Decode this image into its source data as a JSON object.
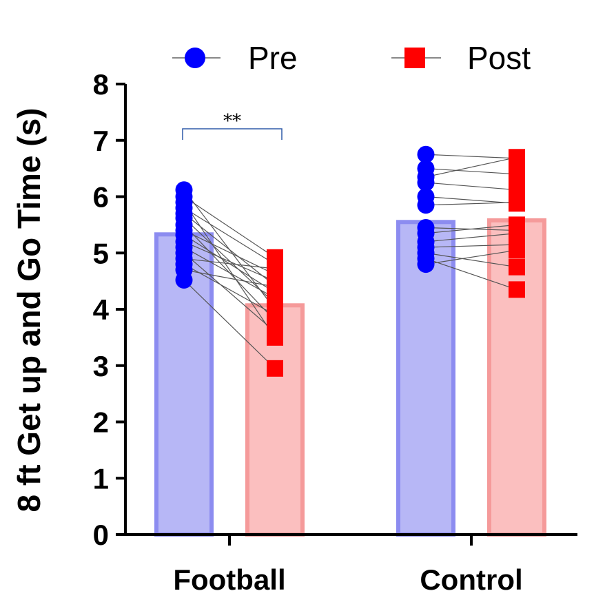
{
  "chart_data": {
    "type": "bar",
    "title": "",
    "ylabel": "8 ft Get up and Go Time (s)",
    "xlabel": "",
    "ylim": [
      0,
      8
    ],
    "yticks": [
      "0",
      "1",
      "2",
      "3",
      "4",
      "5",
      "6",
      "7",
      "8"
    ],
    "categories": [
      "Football",
      "Control"
    ],
    "series": [
      {
        "name": "Pre",
        "color": "#0000ff",
        "bar_color": "#b3b3f5",
        "bar_edge": "#8c8cf0",
        "marker": "circle",
        "values": [
          5.33,
          5.55
        ]
      },
      {
        "name": "Post",
        "color": "#ff0000",
        "bar_color": "#fbbcbc",
        "bar_edge": "#f59a9a",
        "marker": "square",
        "values": [
          4.07,
          5.58
        ]
      }
    ],
    "paired_points": [
      {
        "group": "Football",
        "pre": [
          6.12,
          6.0,
          5.9,
          5.8,
          5.7,
          5.62,
          5.5,
          5.4,
          5.32,
          5.2,
          5.1,
          5.0,
          4.9,
          4.8,
          4.7,
          4.52
        ],
        "post": [
          4.0,
          4.92,
          3.5,
          4.8,
          4.42,
          4.1,
          3.8,
          4.62,
          4.3,
          4.5,
          4.2,
          3.6,
          4.72,
          3.9,
          4.4,
          2.95
        ]
      },
      {
        "group": "Control",
        "pre": [
          6.75,
          6.5,
          6.35,
          6.25,
          6.0,
          5.85,
          5.45,
          5.35,
          5.2,
          5.1,
          5.0,
          4.9,
          4.8
        ],
        "post": [
          6.68,
          6.4,
          6.7,
          6.12,
          5.88,
          5.9,
          5.4,
          5.5,
          5.35,
          5.15,
          4.75,
          4.35,
          5.05
        ]
      }
    ],
    "significance": {
      "label": "**",
      "between": [
        "Pre",
        "Post"
      ],
      "group": "Football"
    },
    "legend": {
      "position": "top",
      "items": [
        "Pre",
        "Post"
      ]
    }
  }
}
